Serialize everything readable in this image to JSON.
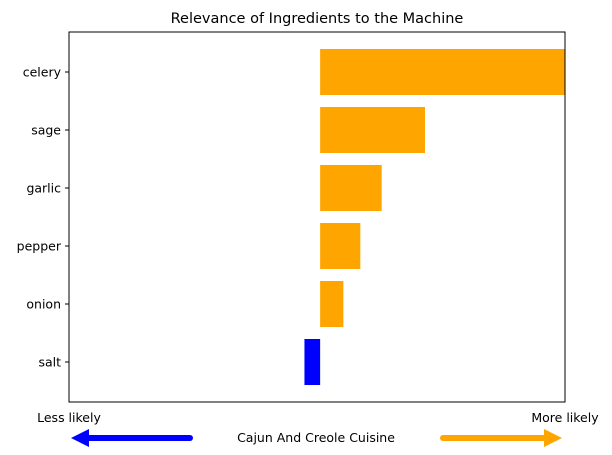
{
  "chart_data": {
    "type": "bar",
    "orientation": "horizontal",
    "title": "Relevance of Ingredients to the Machine",
    "categories": [
      "celery",
      "sage",
      "garlic",
      "pepper",
      "onion",
      "salt"
    ],
    "values": [
      0.39,
      0.167,
      0.098,
      0.064,
      0.037,
      -0.025
    ],
    "xlim": [
      -0.4,
      0.39
    ],
    "x_ticks_shown": false,
    "grid": false,
    "colors": {
      "positive": "#ffa500",
      "negative": "#0000ff"
    },
    "footer": {
      "left_label": "Less likely",
      "right_label": "More likely",
      "center_label": "Cajun And Creole Cuisine",
      "left_arrow_color": "#0000ff",
      "right_arrow_color": "#ffa500"
    }
  }
}
